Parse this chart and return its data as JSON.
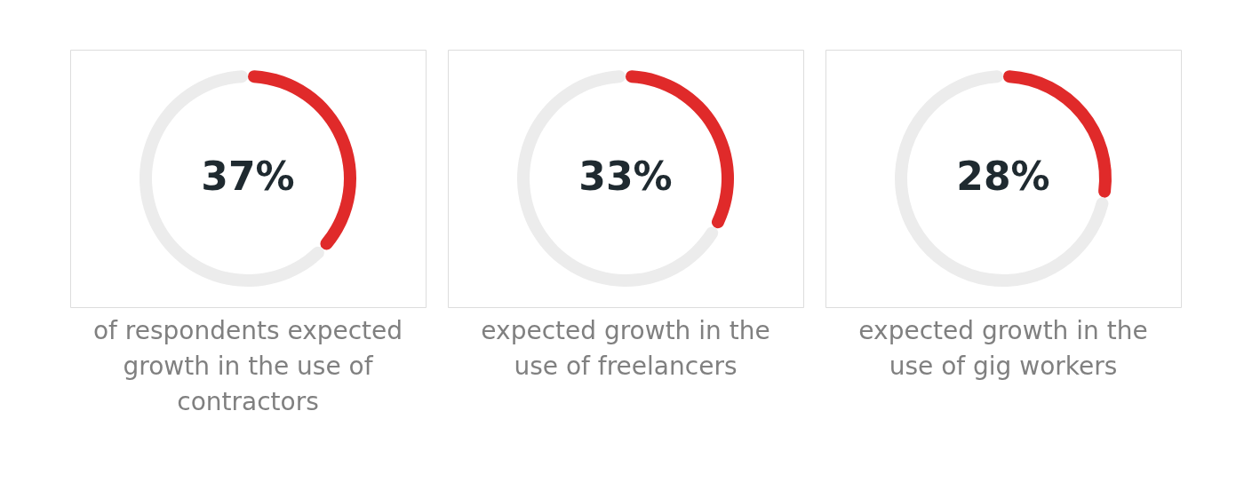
{
  "chart_data": [
    {
      "type": "donut",
      "categories": [
        null,
        null
      ],
      "values": [
        37,
        63
      ],
      "colors": [
        "#e02a2a",
        "#ececec"
      ],
      "value_labels": [
        "37%",
        null
      ],
      "title": "of respondents expected growth in the use of contractors"
    },
    {
      "type": "donut",
      "categories": [
        null,
        null
      ],
      "values": [
        33,
        67
      ],
      "colors": [
        "#e02a2a",
        "#ececec"
      ],
      "value_labels": [
        "33%",
        null
      ],
      "title": "expected growth in the use of freelancers"
    },
    {
      "type": "donut",
      "categories": [
        null,
        null
      ],
      "values": [
        28,
        72
      ],
      "colors": [
        "#e02a2a",
        "#ececec"
      ],
      "value_labels": [
        "28%",
        null
      ],
      "title": "expected growth in the use of gig workers"
    }
  ]
}
